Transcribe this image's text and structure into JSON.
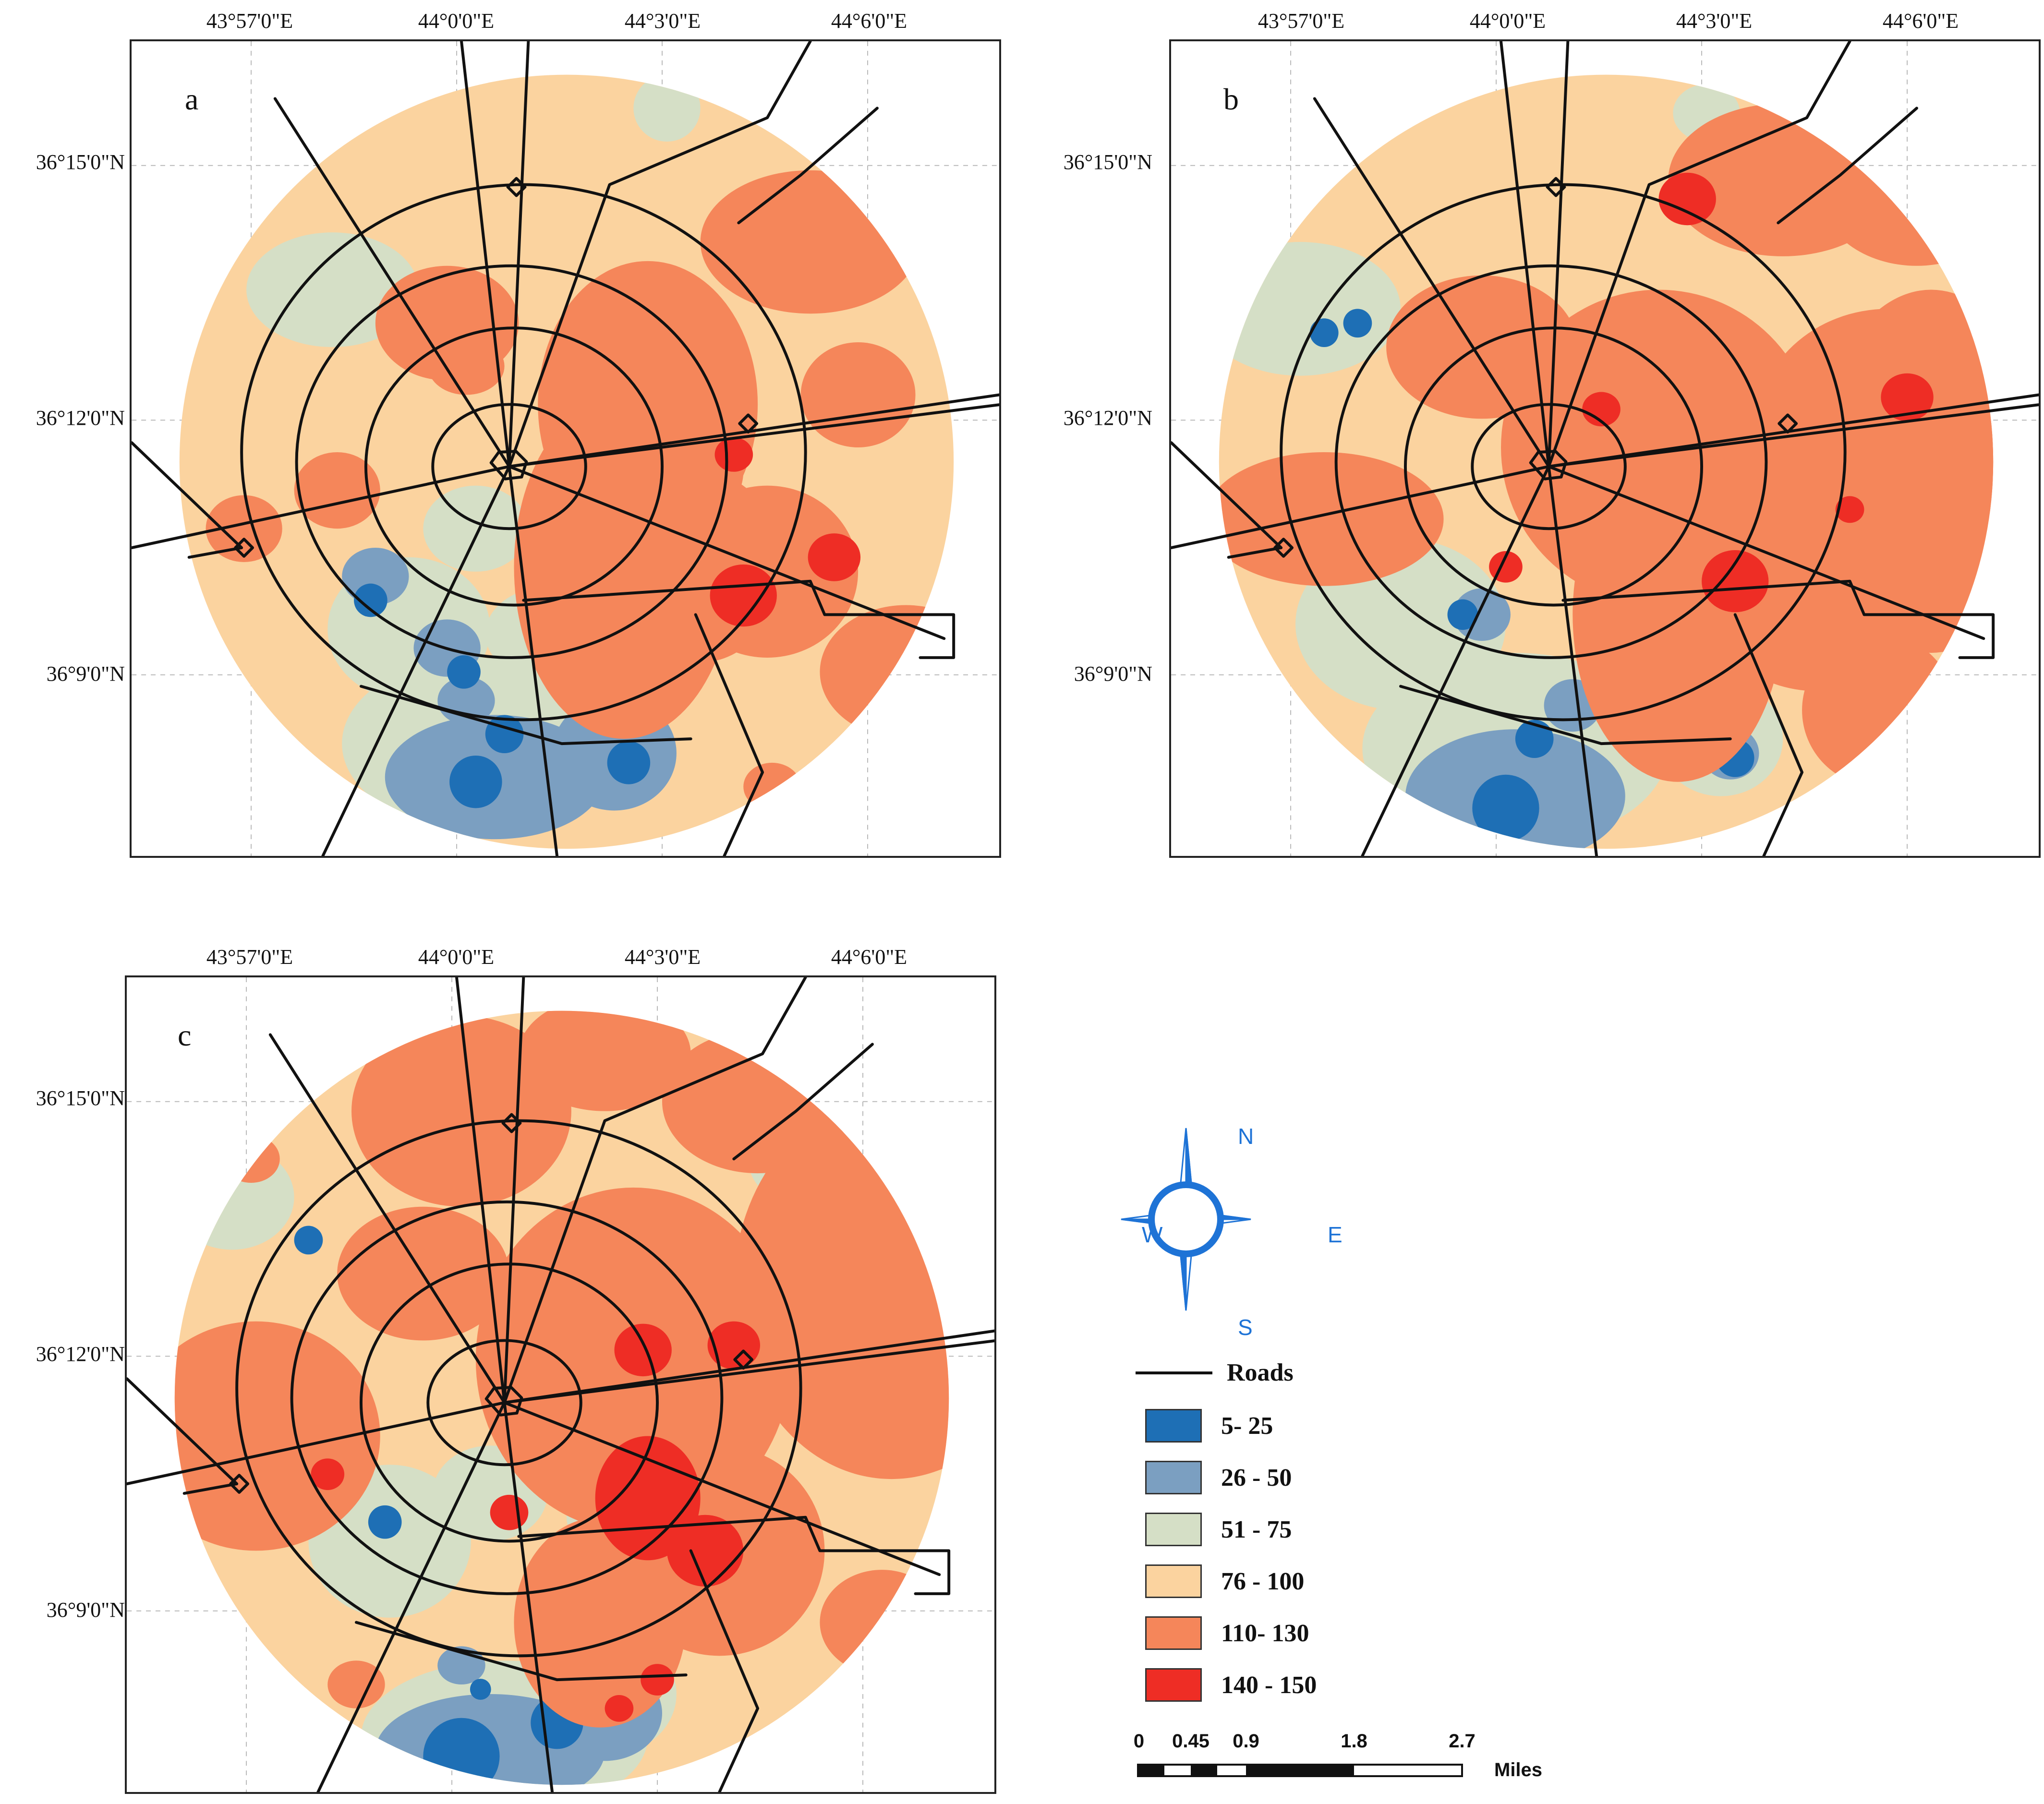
{
  "colors": {
    "c5_25": "#1e6fb5",
    "c26_50": "#7b9fc1",
    "c51_75": "#d5dfc6",
    "c76_100": "#fbd39f",
    "c110_130": "#f5865a",
    "c140_150": "#ee2d25",
    "roads": "#111111",
    "compass": "#1e73d6"
  },
  "axes": {
    "longitudes": [
      "43°57'0\"E",
      "44°0'0\"E",
      "44°3'0\"E",
      "44°6'0\"E"
    ],
    "latitudes": [
      "36°15'0\"N",
      "36°12'0\"N",
      "36°9'0\"N"
    ]
  },
  "panels": [
    {
      "label": "a",
      "variant": "a"
    },
    {
      "label": "b",
      "variant": "b"
    },
    {
      "label": "c",
      "variant": "c"
    }
  ],
  "legend": {
    "compass": {
      "n": "N",
      "s": "S",
      "e": "E",
      "w": "W"
    },
    "roads_label": "Roads",
    "classes": [
      {
        "label": "5- 25",
        "color": "#1e6fb5"
      },
      {
        "label": "26 - 50",
        "color": "#7b9fc1"
      },
      {
        "label": "51 - 75",
        "color": "#d5dfc6"
      },
      {
        "label": "76 - 100",
        "color": "#fbd39f"
      },
      {
        "label": "110- 130",
        "color": "#f5865a"
      },
      {
        "label": "140 - 150",
        "color": "#ee2d25"
      }
    ],
    "scale": {
      "ticks": [
        "0",
        "0.45",
        "0.9",
        "1.8",
        "2.7"
      ],
      "unit": "Miles"
    }
  }
}
